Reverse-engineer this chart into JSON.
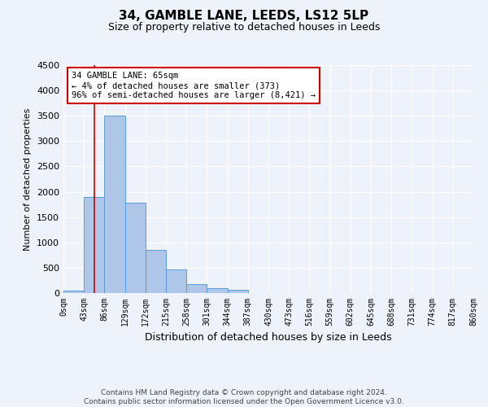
{
  "title": "34, GAMBLE LANE, LEEDS, LS12 5LP",
  "subtitle": "Size of property relative to detached houses in Leeds",
  "xlabel": "Distribution of detached houses by size in Leeds",
  "ylabel": "Number of detached properties",
  "bin_labels": [
    "0sqm",
    "43sqm",
    "86sqm",
    "129sqm",
    "172sqm",
    "215sqm",
    "258sqm",
    "301sqm",
    "344sqm",
    "387sqm",
    "430sqm",
    "473sqm",
    "516sqm",
    "559sqm",
    "602sqm",
    "645sqm",
    "688sqm",
    "731sqm",
    "774sqm",
    "817sqm",
    "860sqm"
  ],
  "bin_edges": [
    0,
    43,
    86,
    129,
    172,
    215,
    258,
    301,
    344,
    387,
    430,
    473,
    516,
    559,
    602,
    645,
    688,
    731,
    774,
    817,
    860
  ],
  "bar_values": [
    50,
    1900,
    3500,
    1780,
    850,
    460,
    175,
    100,
    60,
    0,
    0,
    0,
    0,
    0,
    0,
    0,
    0,
    0,
    0,
    0
  ],
  "bar_color": "#aec6e8",
  "bar_edgecolor": "#5b9bd5",
  "property_line_x": 65,
  "property_line_color": "#cc0000",
  "ylim": [
    0,
    4500
  ],
  "yticks": [
    0,
    500,
    1000,
    1500,
    2000,
    2500,
    3000,
    3500,
    4000,
    4500
  ],
  "annotation_title": "34 GAMBLE LANE: 65sqm",
  "annotation_line1": "← 4% of detached houses are smaller (373)",
  "annotation_line2": "96% of semi-detached houses are larger (8,421) →",
  "annotation_box_color": "#ffffff",
  "annotation_box_edgecolor": "#cc0000",
  "background_color": "#eef2fb",
  "grid_color": "#ffffff",
  "footer_line1": "Contains HM Land Registry data © Crown copyright and database right 2024.",
  "footer_line2": "Contains public sector information licensed under the Open Government Licence v3.0."
}
